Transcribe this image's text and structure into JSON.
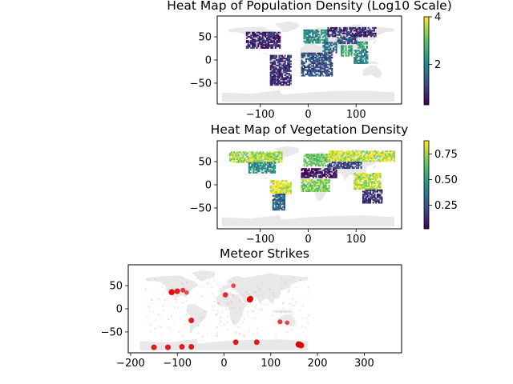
{
  "chart_data": [
    {
      "type": "heatmap",
      "title": "Heat Map of Population Density (Log10 Scale)",
      "xlabel": "",
      "ylabel": "",
      "xlim": [
        -190,
        195
      ],
      "ylim": [
        -95,
        95
      ],
      "xticks": [
        -100,
        0,
        100
      ],
      "xtick_labels": [
        "−100",
        "0",
        "100"
      ],
      "yticks": [
        50,
        0,
        -50
      ],
      "ytick_labels": [
        "50",
        "0",
        "−50"
      ],
      "colormap": "viridis",
      "colorbar": {
        "range": [
          0.3,
          4.0
        ],
        "ticks": [
          4,
          2
        ],
        "tick_labels": [
          "4",
          "2"
        ]
      },
      "background_land_color": "#e8e8e8",
      "value_regions": [
        {
          "region": "Europe",
          "lon": [
            -10,
            40
          ],
          "lat": [
            36,
            65
          ],
          "log10_density": 2.1
        },
        {
          "region": "Russia / Siberia",
          "lon": [
            40,
            140
          ],
          "lat": [
            50,
            70
          ],
          "log10_density": 0.8
        },
        {
          "region": "Middle East",
          "lon": [
            30,
            60
          ],
          "lat": [
            15,
            38
          ],
          "log10_density": 1.6
        },
        {
          "region": "South Asia",
          "lon": [
            68,
            92
          ],
          "lat": [
            8,
            32
          ],
          "log10_density": 2.6
        },
        {
          "region": "East China",
          "lon": [
            100,
            122
          ],
          "lat": [
            22,
            40
          ],
          "log10_density": 2.4
        },
        {
          "region": "Central Asia",
          "lon": [
            60,
            100
          ],
          "lat": [
            35,
            50
          ],
          "log10_density": 1.3
        },
        {
          "region": "Southeast Asia",
          "lon": [
            95,
            125
          ],
          "lat": [
            -8,
            20
          ],
          "log10_density": 2.0
        },
        {
          "region": "Africa",
          "lon": [
            -15,
            50
          ],
          "lat": [
            -35,
            15
          ],
          "log10_density": 1.2
        },
        {
          "region": "North America",
          "lon": [
            -130,
            -60
          ],
          "lat": [
            25,
            60
          ],
          "log10_density": 0.7
        },
        {
          "region": "South America",
          "lon": [
            -80,
            -35
          ],
          "lat": [
            -55,
            10
          ],
          "log10_density": 0.9
        }
      ]
    },
    {
      "type": "heatmap",
      "title": "Heat Map of Vegetation Density",
      "xlabel": "",
      "ylabel": "",
      "xlim": [
        -190,
        195
      ],
      "ylim": [
        -95,
        95
      ],
      "xticks": [
        -100,
        0,
        100
      ],
      "xtick_labels": [
        "−100",
        "0",
        "100"
      ],
      "yticks": [
        50,
        0,
        -50
      ],
      "ytick_labels": [
        "50",
        "0",
        "−50"
      ],
      "colormap": "viridis",
      "colorbar": {
        "range": [
          0.02,
          0.88
        ],
        "ticks": [
          0.75,
          0.5,
          0.25
        ],
        "tick_labels": [
          "0.75",
          "0.50",
          "0.25"
        ]
      },
      "background_land_color": "#e8e8e8",
      "value_regions": [
        {
          "region": "Boreal North America",
          "lon": [
            -165,
            -55
          ],
          "lat": [
            48,
            70
          ],
          "density": 0.75
        },
        {
          "region": "Central North America",
          "lon": [
            -125,
            -70
          ],
          "lat": [
            25,
            48
          ],
          "density": 0.45
        },
        {
          "region": "Amazon",
          "lon": [
            -80,
            -35
          ],
          "lat": [
            -20,
            10
          ],
          "density": 0.85
        },
        {
          "region": "Southern South America",
          "lon": [
            -75,
            -50
          ],
          "lat": [
            -55,
            -20
          ],
          "density": 0.3
        },
        {
          "region": "Sahara / Arabia",
          "lon": [
            -15,
            60
          ],
          "lat": [
            15,
            35
          ],
          "density": 0.05
        },
        {
          "region": "Central Africa",
          "lon": [
            -15,
            45
          ],
          "lat": [
            -15,
            12
          ],
          "density": 0.7
        },
        {
          "region": "Europe",
          "lon": [
            -10,
            40
          ],
          "lat": [
            40,
            65
          ],
          "density": 0.65
        },
        {
          "region": "Siberia",
          "lon": [
            40,
            180
          ],
          "lat": [
            50,
            72
          ],
          "density": 0.8
        },
        {
          "region": "Central Asia",
          "lon": [
            40,
            110
          ],
          "lat": [
            35,
            50
          ],
          "density": 0.2
        },
        {
          "region": "Southeast Asia",
          "lon": [
            95,
            150
          ],
          "lat": [
            -10,
            25
          ],
          "density": 0.8
        },
        {
          "region": "Australia",
          "lon": [
            113,
            154
          ],
          "lat": [
            -40,
            -12
          ],
          "density": 0.15
        }
      ]
    },
    {
      "type": "heatmap",
      "title": "Meteor Strikes",
      "xlabel": "",
      "ylabel": "",
      "xlim": [
        -205,
        380
      ],
      "ylim": [
        -95,
        95
      ],
      "xticks": [
        -200,
        -100,
        0,
        100,
        200,
        300
      ],
      "xtick_labels": [
        "−200",
        "−100",
        "0",
        "100",
        "200",
        "300"
      ],
      "yticks": [
        50,
        0,
        -50
      ],
      "ytick_labels": [
        "50",
        "0",
        "−50"
      ],
      "colormap": "reds",
      "background_land_color": "#e8e8e8",
      "hotspots": [
        {
          "lon": -112,
          "lat": 36,
          "intensity": 0.9
        },
        {
          "lon": -100,
          "lat": 38,
          "intensity": 0.8
        },
        {
          "lon": -88,
          "lat": 40,
          "intensity": 0.6
        },
        {
          "lon": -80,
          "lat": 35,
          "intensity": 0.5
        },
        {
          "lon": -70,
          "lat": -25,
          "intensity": 0.8
        },
        {
          "lon": 3,
          "lat": 30,
          "intensity": 0.7
        },
        {
          "lon": 20,
          "lat": 50,
          "intensity": 0.5
        },
        {
          "lon": 55,
          "lat": 20,
          "intensity": 0.9
        },
        {
          "lon": 57,
          "lat": 22,
          "intensity": 0.8
        },
        {
          "lon": 120,
          "lat": -28,
          "intensity": 0.6
        },
        {
          "lon": 135,
          "lat": -30,
          "intensity": 0.5
        },
        {
          "lon": 160,
          "lat": -77,
          "intensity": 1.0
        },
        {
          "lon": 165,
          "lat": -79,
          "intensity": 0.9
        },
        {
          "lon": -150,
          "lat": -83,
          "intensity": 0.8
        },
        {
          "lon": -120,
          "lat": -83,
          "intensity": 0.8
        },
        {
          "lon": -90,
          "lat": -82,
          "intensity": 0.8
        },
        {
          "lon": -70,
          "lat": -82,
          "intensity": 0.8
        },
        {
          "lon": 25,
          "lat": -72,
          "intensity": 0.8
        },
        {
          "lon": 70,
          "lat": -72,
          "intensity": 0.8
        }
      ]
    }
  ]
}
